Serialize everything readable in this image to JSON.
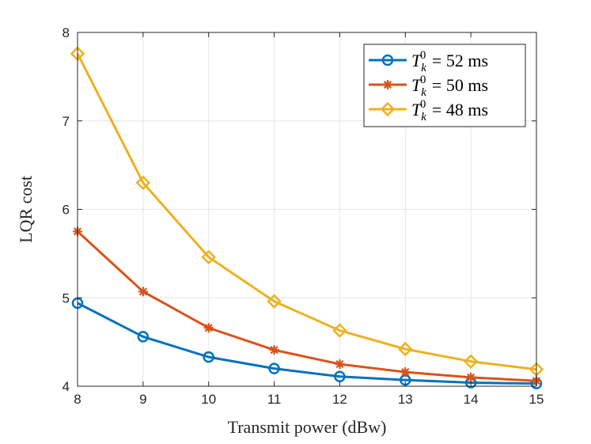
{
  "chart_data": {
    "type": "line",
    "title": "",
    "xlabel": "Transmit power (dBw)",
    "ylabel": "LQR cost",
    "x": [
      8,
      9,
      10,
      11,
      12,
      13,
      14,
      15
    ],
    "xlim": [
      8,
      15
    ],
    "ylim": [
      4,
      8
    ],
    "xticks": [
      8,
      9,
      10,
      11,
      12,
      13,
      14,
      15
    ],
    "yticks": [
      4,
      5,
      6,
      7,
      8
    ],
    "grid": true,
    "legend_position": "top-right",
    "series": [
      {
        "name": "T_k^0 = 52 ms",
        "label": {
          "var": "T",
          "sub": "k",
          "sup": "0",
          "rest": " = 52 ms"
        },
        "color": "#0072BD",
        "marker": "circle",
        "values": [
          4.94,
          4.56,
          4.33,
          4.2,
          4.11,
          4.07,
          4.04,
          4.03
        ]
      },
      {
        "name": "T_k^0 = 50 ms",
        "label": {
          "var": "T",
          "sub": "k",
          "sup": "0",
          "rest": " = 50 ms"
        },
        "color": "#D95319",
        "marker": "asterisk",
        "values": [
          5.75,
          5.07,
          4.66,
          4.41,
          4.25,
          4.16,
          4.1,
          4.06
        ]
      },
      {
        "name": "T_k^0 = 48 ms",
        "label": {
          "var": "T",
          "sub": "k",
          "sup": "0",
          "rest": " = 48 ms"
        },
        "color": "#EDB120",
        "marker": "diamond",
        "values": [
          7.76,
          6.3,
          5.46,
          4.96,
          4.63,
          4.42,
          4.28,
          4.19
        ]
      }
    ]
  }
}
